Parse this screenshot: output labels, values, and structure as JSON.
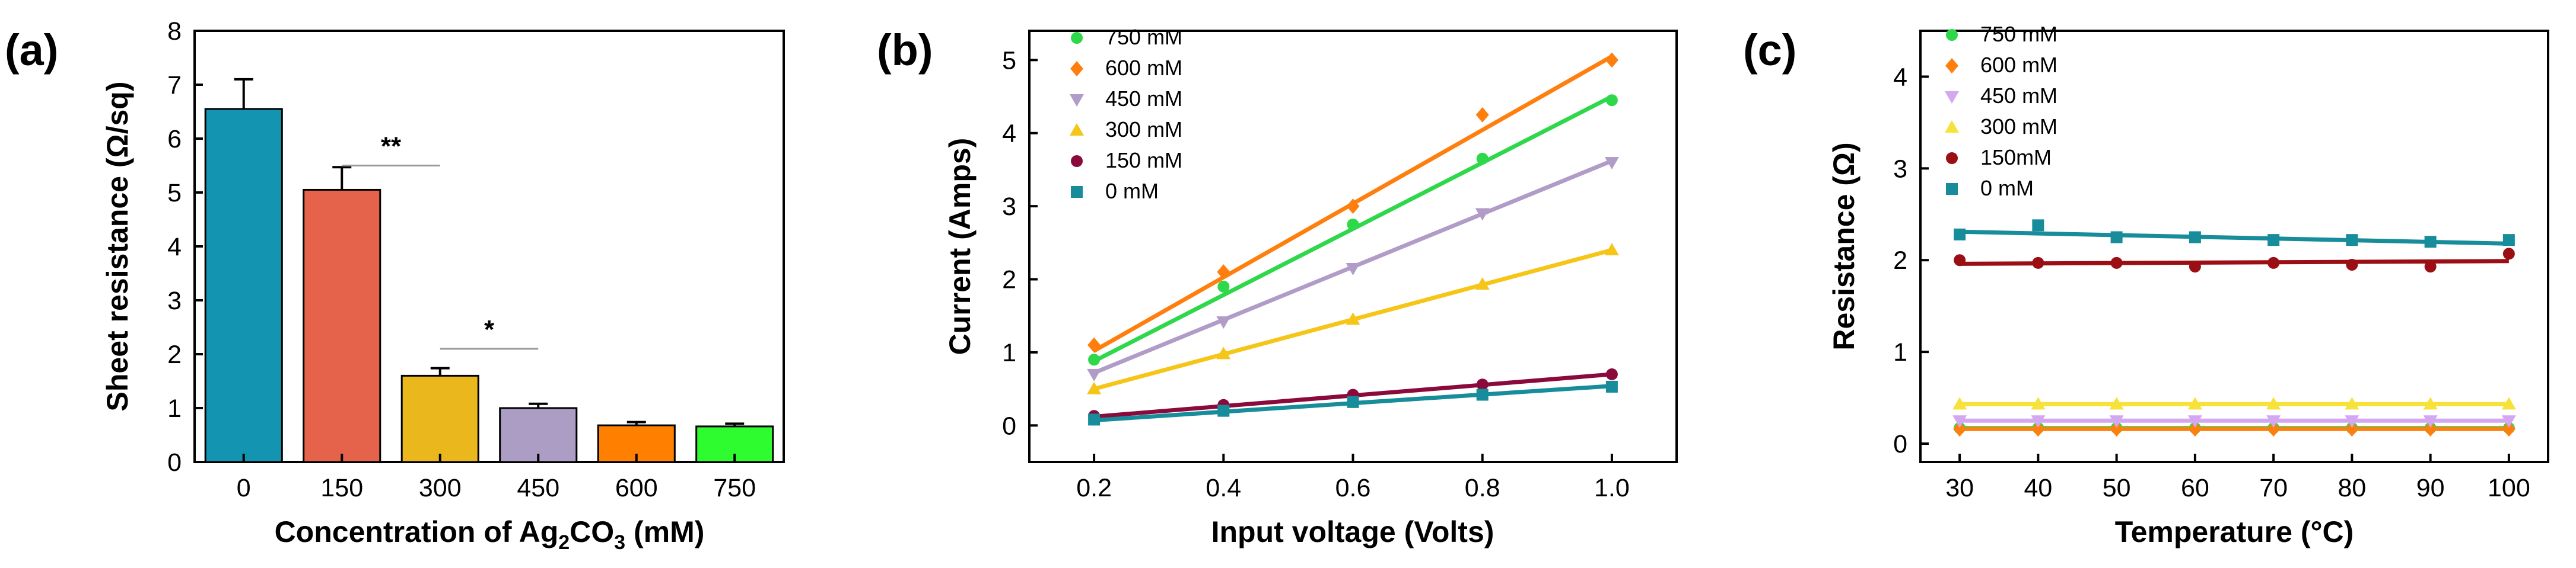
{
  "chart_data": [
    {
      "panel": "(a)",
      "type": "bar",
      "xlabel_main": "Concentration of Ag",
      "xlabel_sub": "2",
      "xlabel_main2": "CO",
      "xlabel_sub2": "3",
      "xlabel_tail": " (mM)",
      "ylabel": "Sheet resistance (Ω/sq)",
      "ylim": [
        0,
        8
      ],
      "yticks": [
        "0",
        "1",
        "2",
        "3",
        "4",
        "5",
        "6",
        "7",
        "8"
      ],
      "categories": [
        "0",
        "150",
        "300",
        "450",
        "600",
        "750"
      ],
      "values": [
        6.55,
        5.05,
        1.6,
        1.0,
        0.68,
        0.66
      ],
      "errors": [
        0.55,
        0.42,
        0.14,
        0.08,
        0.06,
        0.05
      ],
      "colors": [
        "#1394b1",
        "#e5634a",
        "#eab81c",
        "#ac9dc4",
        "#ff8000",
        "#2efc2e"
      ],
      "significance": [
        {
          "label": "**",
          "from": "150",
          "to": "300"
        },
        {
          "label": "*",
          "from": "300",
          "to": "450"
        }
      ]
    },
    {
      "panel": "(b)",
      "type": "scatter",
      "xlabel": "Input voltage (Volts)",
      "ylabel": "Current (Amps)",
      "xlim": [
        0.1,
        1.1
      ],
      "ylim": [
        -0.5,
        5.4
      ],
      "xticks": [
        "0.2",
        "0.4",
        "0.6",
        "0.8",
        "1.0"
      ],
      "yticks": [
        "0",
        "1",
        "2",
        "3",
        "4",
        "5"
      ],
      "x": [
        0.2,
        0.4,
        0.6,
        0.8,
        1.0
      ],
      "series": [
        {
          "name": "750 mM",
          "color": "#2ed84a",
          "marker": "circle",
          "values": [
            0.9,
            1.9,
            2.75,
            3.65,
            4.45
          ],
          "fit": [
            0.88,
            4.5
          ]
        },
        {
          "name": "600 mM",
          "color": "#ff7f0e",
          "marker": "diamond",
          "values": [
            1.1,
            2.1,
            3.0,
            4.25,
            5.0
          ],
          "fit": [
            1.02,
            5.05
          ]
        },
        {
          "name": "450 mM",
          "color": "#b19cc8",
          "marker": "triangle-down",
          "values": [
            0.7,
            1.42,
            2.15,
            2.9,
            3.6
          ],
          "fit": [
            0.72,
            3.62
          ]
        },
        {
          "name": "300 mM",
          "color": "#f5c518",
          "marker": "triangle-up",
          "values": [
            0.5,
            0.98,
            1.45,
            1.93,
            2.4
          ],
          "fit": [
            0.5,
            2.4
          ]
        },
        {
          "name": "150 mM",
          "color": "#8b0a3c",
          "marker": "circle",
          "values": [
            0.13,
            0.28,
            0.42,
            0.56,
            0.7
          ],
          "fit": [
            0.12,
            0.7
          ]
        },
        {
          "name": "0 mM",
          "color": "#178c9a",
          "marker": "square",
          "values": [
            0.08,
            0.2,
            0.32,
            0.42,
            0.53
          ],
          "fit": [
            0.07,
            0.54
          ]
        }
      ]
    },
    {
      "panel": "(c)",
      "type": "scatter",
      "xlabel": "Temperature (°C)",
      "ylabel": "Resistance (Ω)",
      "xlim": [
        25,
        105
      ],
      "ylim": [
        -0.2,
        4.5
      ],
      "xticks": [
        "30",
        "40",
        "50",
        "60",
        "70",
        "80",
        "90",
        "100"
      ],
      "yticks": [
        "0",
        "1",
        "2",
        "3",
        "4"
      ],
      "x": [
        30,
        40,
        50,
        60,
        70,
        80,
        90,
        100
      ],
      "series": [
        {
          "name": "750 mM",
          "color": "#2ed84a",
          "marker": "circle",
          "values": [
            0.17,
            0.17,
            0.17,
            0.17,
            0.17,
            0.17,
            0.17,
            0.17
          ],
          "fit": [
            0.17,
            0.17
          ]
        },
        {
          "name": "600 mM",
          "color": "#ff7f0e",
          "marker": "diamond",
          "values": [
            0.16,
            0.16,
            0.16,
            0.16,
            0.16,
            0.16,
            0.16,
            0.16
          ],
          "fit": [
            0.16,
            0.16
          ]
        },
        {
          "name": "450 mM",
          "color": "#d4a8f0",
          "marker": "triangle-down",
          "values": [
            0.25,
            0.25,
            0.25,
            0.25,
            0.25,
            0.25,
            0.25,
            0.25
          ],
          "fit": [
            0.25,
            0.25
          ]
        },
        {
          "name": "300 mM",
          "color": "#f7e23a",
          "marker": "triangle-up",
          "values": [
            0.43,
            0.43,
            0.43,
            0.43,
            0.43,
            0.43,
            0.43,
            0.43
          ],
          "fit": [
            0.43,
            0.43
          ]
        },
        {
          "name": "150mM",
          "color": "#9b0f14",
          "marker": "circle",
          "values": [
            2.0,
            1.97,
            1.97,
            1.93,
            1.97,
            1.95,
            1.93,
            2.07
          ],
          "fit": [
            1.96,
            1.99
          ]
        },
        {
          "name": "0 mM",
          "color": "#178c9a",
          "marker": "square",
          "values": [
            2.28,
            2.38,
            2.25,
            2.25,
            2.22,
            2.22,
            2.2,
            2.22
          ],
          "fit": [
            2.31,
            2.18
          ]
        }
      ]
    }
  ]
}
